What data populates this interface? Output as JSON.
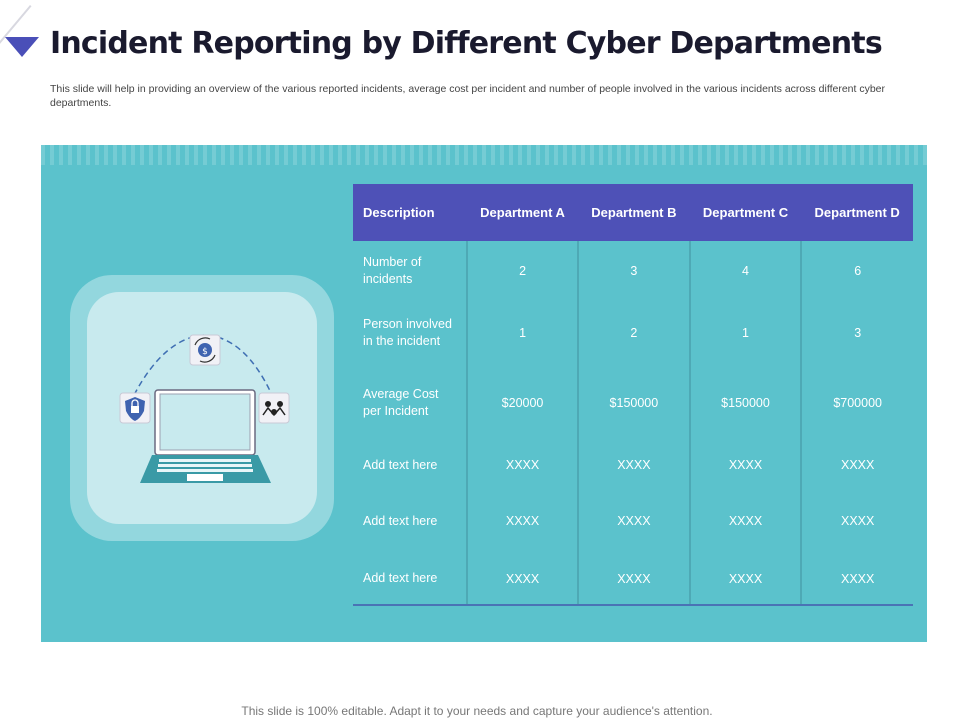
{
  "header": {
    "title": "Incident Reporting by Different Cyber Departments",
    "subtitle": "This slide will help in providing an overview of the  various reported incidents, average cost per incident and  number of people involved in the various incidents across different cyber departments."
  },
  "table": {
    "headers": [
      "Description",
      "Department A",
      "Department B",
      "Department C",
      "Department D"
    ],
    "rows": [
      {
        "label": "Number of incidents",
        "values": [
          "2",
          "3",
          "4",
          "6"
        ]
      },
      {
        "label": "Person involved in the incident",
        "values": [
          "1",
          "2",
          "1",
          "3"
        ]
      },
      {
        "label": "Average Cost per Incident",
        "values": [
          "$20000",
          "$150000",
          "$150000",
          "$700000"
        ]
      },
      {
        "label": "Add text here",
        "values": [
          "XXXX",
          "XXXX",
          "XXXX",
          "XXXX"
        ]
      },
      {
        "label": "Add text here",
        "values": [
          "XXXX",
          "XXXX",
          "XXXX",
          "XXXX"
        ]
      },
      {
        "label": "Add text here",
        "values": [
          "XXXX",
          "XXXX",
          "XXXX",
          "XXXX"
        ]
      }
    ]
  },
  "illustration": {
    "icons": [
      "laptop-icon",
      "lock-shield-icon",
      "dollar-refresh-icon",
      "people-network-icon"
    ]
  },
  "footer": {
    "text": "This slide is 100% editable. Adapt it to your needs and capture your audience's attention."
  },
  "colors": {
    "panel": "#5bc2cc",
    "header_row": "#4e51b7",
    "accent_triangle": "#4a4fb8"
  }
}
